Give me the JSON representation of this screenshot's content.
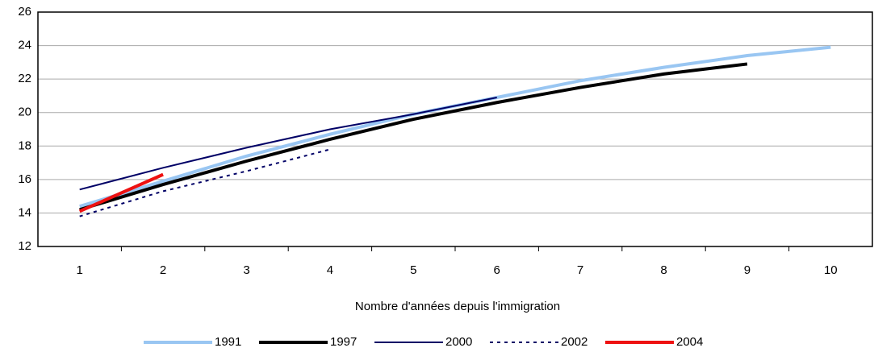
{
  "chart_data": {
    "type": "line",
    "xlabel": "Nombre d'années depuis l'immigration",
    "categories": [
      "1",
      "2",
      "3",
      "4",
      "5",
      "6",
      "7",
      "8",
      "9",
      "10"
    ],
    "ylim": [
      12,
      26
    ],
    "yticks": [
      12,
      14,
      16,
      18,
      20,
      22,
      24,
      26
    ],
    "grid": true,
    "series": [
      {
        "name": "1991",
        "color": "#99c6f2",
        "width": 4,
        "style": "solid",
        "values": [
          14.4,
          15.9,
          17.4,
          18.7,
          19.9,
          20.9,
          21.9,
          22.7,
          23.4,
          23.9
        ]
      },
      {
        "name": "1997",
        "color": "#000000",
        "width": 4,
        "style": "solid",
        "values": [
          14.2,
          15.7,
          17.1,
          18.4,
          19.6,
          20.6,
          21.5,
          22.3,
          22.9,
          null
        ]
      },
      {
        "name": "2000",
        "color": "#000066",
        "width": 2,
        "style": "solid",
        "values": [
          15.4,
          16.7,
          17.9,
          19.0,
          19.9,
          20.9,
          null,
          null,
          null,
          null
        ]
      },
      {
        "name": "2002",
        "color": "#000066",
        "width": 2,
        "style": "dashed",
        "values": [
          13.8,
          15.3,
          16.5,
          17.8,
          null,
          null,
          null,
          null,
          null,
          null
        ]
      },
      {
        "name": "2004",
        "color": "#ee1111",
        "width": 4,
        "style": "solid",
        "values": [
          14.1,
          16.3,
          null,
          null,
          null,
          null,
          null,
          null,
          null,
          null
        ]
      }
    ]
  }
}
